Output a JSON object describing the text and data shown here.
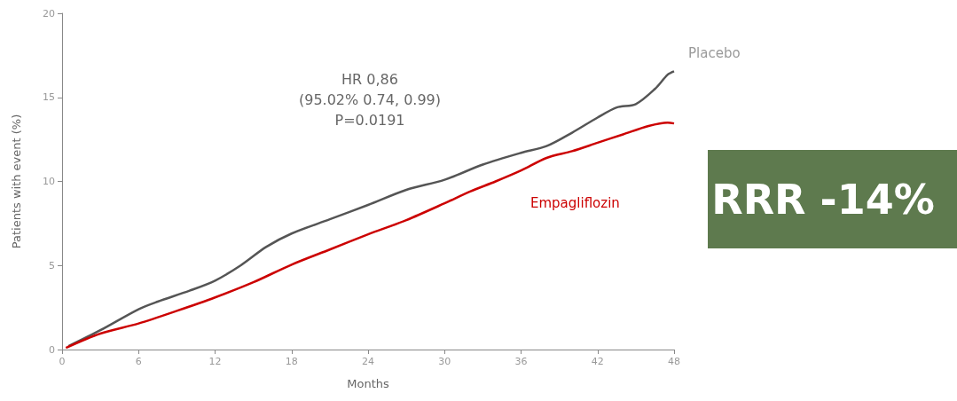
{
  "chart_data": {
    "type": "line",
    "xlabel": "Months",
    "ylabel": "Patients with event (%)",
    "xlim": [
      0,
      48
    ],
    "xticks": [
      0,
      6,
      12,
      18,
      24,
      30,
      36,
      42,
      48
    ],
    "ylim": [
      0,
      20
    ],
    "yticks": [
      0,
      5,
      10,
      15,
      20
    ],
    "grid": false,
    "marker": "none",
    "line_style": "solid",
    "legend": false,
    "annotations": [
      "HR 0,86\n(95.02% 0.74, 0.99)\nP=0.0191",
      "RRR -14%"
    ],
    "series": [
      {
        "name": "Placebo",
        "color": "#555555",
        "x": [
          0.5,
          3,
          6,
          7.5,
          10,
          12,
          14,
          16,
          18,
          21,
          24,
          27,
          30,
          33,
          36,
          38,
          40,
          42,
          43.5,
          45,
          46.5,
          47.5,
          48
        ],
        "values": [
          0.2,
          1.15,
          2.4,
          2.85,
          3.5,
          4.1,
          5.0,
          6.1,
          6.9,
          7.75,
          8.6,
          9.5,
          10.1,
          11.0,
          11.7,
          12.1,
          12.9,
          13.8,
          14.4,
          14.6,
          15.5,
          16.35,
          16.55
        ]
      },
      {
        "name": "Empagliflozin",
        "color": "#cc0000",
        "x": [
          0.3,
          3,
          6,
          9,
          12,
          15,
          18,
          21,
          24,
          27,
          30,
          32,
          34,
          36,
          38,
          40,
          42,
          44,
          46,
          47.5,
          48
        ],
        "values": [
          0.1,
          0.95,
          1.55,
          2.3,
          3.1,
          4.0,
          5.05,
          5.95,
          6.85,
          7.7,
          8.7,
          9.4,
          10.0,
          10.65,
          11.4,
          11.8,
          12.3,
          12.8,
          13.3,
          13.5,
          13.45
        ]
      }
    ]
  }
}
